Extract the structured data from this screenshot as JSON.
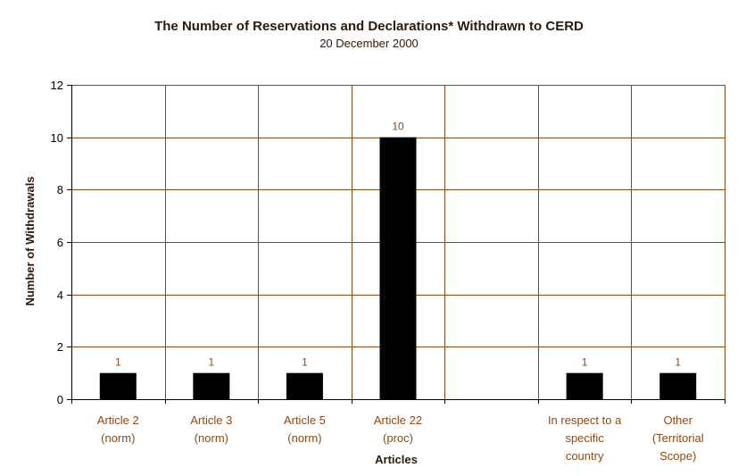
{
  "chart_data": {
    "type": "bar",
    "title": "The Number of Reservations and Declarations* Withdrawn to CERD",
    "subtitle": "20 December 2000",
    "xlabel": "Articles",
    "ylabel": "Number of Withdrawals",
    "ylim": [
      0,
      12
    ],
    "yticks": [
      "0",
      "2",
      "4",
      "6",
      "8",
      "10",
      "12"
    ],
    "grid": true,
    "categories": [
      [
        "Article 2",
        "(norm)"
      ],
      [
        "Article 3",
        "(norm)"
      ],
      [
        "Article 5",
        "(norm)"
      ],
      [
        "Article 22",
        "(proc)"
      ],
      [],
      [
        "In respect to a",
        "specific",
        "country"
      ],
      [
        "Other",
        "(Territorial",
        "Scope)"
      ]
    ],
    "values": [
      1,
      1,
      1,
      10,
      null,
      1,
      1
    ],
    "data_labels": [
      "1",
      "1",
      "1",
      "10",
      "",
      "1",
      "1"
    ],
    "colors": {
      "bar": "#000000",
      "grid": "#8b4a16",
      "axis": "#000000",
      "axis_text": "#000000",
      "category_text": "#8b4a16",
      "data_label_text": "#8b4a16",
      "title_text": "#2a1a0a",
      "axis_title_text": "#2a1a0a"
    }
  }
}
